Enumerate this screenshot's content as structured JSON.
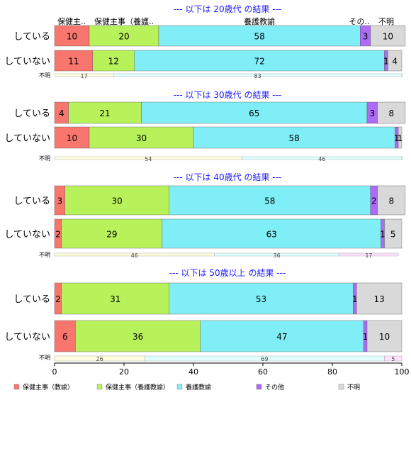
{
  "chart_data": {
    "type": "bar",
    "orientation": "horizontal",
    "stacked": true,
    "xlim": [
      0,
      100
    ],
    "x_ticks": [
      "0",
      "20",
      "40",
      "60",
      "80",
      "100"
    ],
    "top_labels": [
      "保健主..",
      "保健主事（養護..",
      "養護教諭",
      "その..",
      "不明"
    ],
    "legend": {
      "position": "bottom",
      "items": [
        {
          "name": "保健主事（教諭）",
          "color": "#F8766D"
        },
        {
          "name": "保健主事（養護教諭）",
          "color": "#B8F25A"
        },
        {
          "name": "養護教諭",
          "color": "#80EEF6"
        },
        {
          "name": "その他",
          "color": "#AE6BF4"
        },
        {
          "name": "不明",
          "color": "#D9D9D9"
        }
      ]
    },
    "groups": [
      {
        "title": "--- 以下は 20歳代 の結果 ---",
        "rows": [
          {
            "label": "している",
            "values": [
              10,
              20,
              58,
              3,
              10
            ]
          },
          {
            "label": "していない",
            "values": [
              11,
              12,
              72,
              1,
              4
            ]
          }
        ],
        "unknown": {
          "label": "不明",
          "values": [
            17,
            83,
            0
          ]
        }
      },
      {
        "title": "--- 以下は 30歳代 の結果 ---",
        "rows": [
          {
            "label": "している",
            "values": [
              4,
              21,
              65,
              3,
              8
            ]
          },
          {
            "label": "していない",
            "values": [
              10,
              30,
              58,
              1,
              1
            ]
          }
        ],
        "unknown": {
          "label": "不明",
          "values": [
            54,
            46,
            0
          ]
        }
      },
      {
        "title": "--- 以下は 40歳代 の結果 ---",
        "rows": [
          {
            "label": "している",
            "values": [
              3,
              30,
              58,
              2,
              8
            ]
          },
          {
            "label": "していない",
            "values": [
              2,
              29,
              63,
              1,
              5
            ]
          }
        ],
        "unknown": {
          "label": "不明",
          "values": [
            46,
            36,
            17
          ]
        }
      },
      {
        "title": "--- 以下は 50歳以上 の結果 ---",
        "rows": [
          {
            "label": "している",
            "values": [
              2,
              31,
              53,
              1,
              13
            ]
          },
          {
            "label": "していない",
            "values": [
              6,
              36,
              47,
              1,
              10
            ]
          }
        ],
        "unknown": {
          "label": "不明",
          "values": [
            26,
            69,
            5
          ]
        }
      }
    ],
    "unknown_colors": [
      "#FFFFE0",
      "#E0FFFF",
      "#FFE0FF"
    ]
  }
}
